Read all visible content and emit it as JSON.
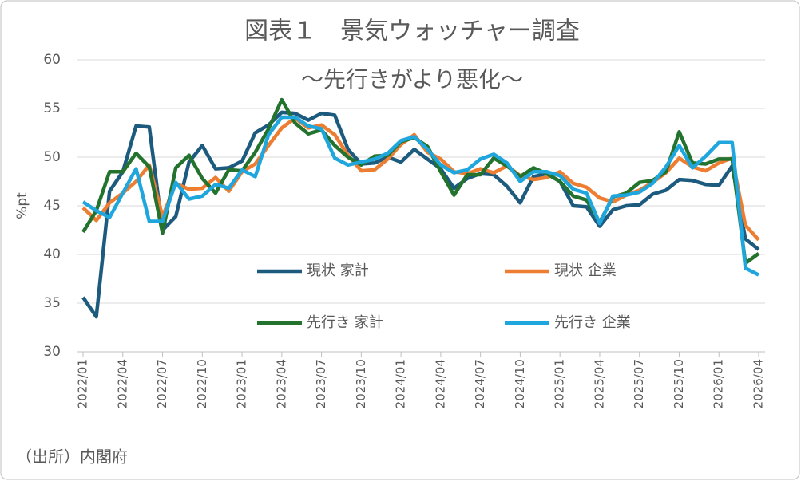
{
  "chart_data": {
    "type": "line",
    "title": "図表１　景気ウォッチャー調査",
    "subtitle": "～先行きがより悪化～",
    "y_label": "%pt",
    "source": "（出所）内閣府",
    "categories": [
      "2022/01",
      null,
      null,
      "2022/04",
      null,
      null,
      "2022/07",
      null,
      null,
      "2022/10",
      null,
      null,
      "2023/01",
      null,
      null,
      "2023/04",
      null,
      null,
      "2023/07",
      null,
      null,
      "2023/10",
      null,
      null,
      "2024/01",
      null,
      null,
      "2024/04",
      null,
      null,
      "2024/07",
      null,
      null,
      "2024/10",
      null,
      null,
      "2025/01",
      null,
      null,
      "2025/04",
      null,
      null,
      "2025/07",
      null,
      null,
      "2025/10",
      null,
      null,
      "2026/01",
      null,
      null,
      "2026/04"
    ],
    "series": [
      {
        "name": "現状 家計",
        "color": "#1d5b7e",
        "values": [
          35.6,
          33.6,
          46.5,
          48.5,
          53.2,
          53.1,
          42.5,
          43.9,
          49.5,
          51.2,
          48.8,
          48.9,
          49.6,
          52.5,
          53.3,
          54.6,
          54.5,
          53.8,
          54.5,
          54.3,
          50.8,
          49.3,
          49.4,
          50.0,
          49.5,
          50.8,
          49.8,
          48.8,
          46.8,
          47.8,
          48.3,
          48.2,
          47.0,
          45.3,
          48.0,
          48.3,
          47.5,
          45.0,
          44.9,
          42.9,
          44.6,
          45.0,
          45.1,
          46.2,
          46.6,
          47.7,
          47.6,
          47.2,
          47.1,
          49.1,
          41.6,
          40.5
        ]
      },
      {
        "name": "現状 企業",
        "color": "#ed7d31",
        "values": [
          44.8,
          43.5,
          45.3,
          46.3,
          47.5,
          49.2,
          43.9,
          47.3,
          46.7,
          46.8,
          47.9,
          46.5,
          48.5,
          49.3,
          51.2,
          53.0,
          54.0,
          53.0,
          53.3,
          52.3,
          50.2,
          48.6,
          48.7,
          49.8,
          51.3,
          52.3,
          50.5,
          49.8,
          48.5,
          48.3,
          48.8,
          48.4,
          49.1,
          48.1,
          47.7,
          47.9,
          48.5,
          47.3,
          46.9,
          45.8,
          45.4,
          46.1,
          46.6,
          47.4,
          48.4,
          49.9,
          49.0,
          48.6,
          49.4,
          49.9,
          43.0,
          41.5
        ]
      },
      {
        "name": "先行き 家計",
        "color": "#23732e",
        "values": [
          42.3,
          44.5,
          48.5,
          48.5,
          50.4,
          49.0,
          42.2,
          48.9,
          50.2,
          47.8,
          46.3,
          48.7,
          48.6,
          50.5,
          52.9,
          55.9,
          53.5,
          52.4,
          52.8,
          51.2,
          50.0,
          49.2,
          50.1,
          50.2,
          51.6,
          52.0,
          51.1,
          48.5,
          46.1,
          48.2,
          48.2,
          49.9,
          49.1,
          48.0,
          48.9,
          48.3,
          47.5,
          46.0,
          45.6,
          43.3,
          45.9,
          46.3,
          47.4,
          47.6,
          48.5,
          52.6,
          49.4,
          49.3,
          49.8,
          49.8,
          39.1,
          40.1
        ]
      },
      {
        "name": "先行き 企業",
        "color": "#1fa6dc",
        "values": [
          45.4,
          44.5,
          43.8,
          46.3,
          48.8,
          43.4,
          43.4,
          47.4,
          45.7,
          46.0,
          47.2,
          46.8,
          48.7,
          48.0,
          52.3,
          54.1,
          54.1,
          53.2,
          52.9,
          49.9,
          49.2,
          49.5,
          49.8,
          50.4,
          51.7,
          52.1,
          50.8,
          49.2,
          48.4,
          48.7,
          49.8,
          50.3,
          49.4,
          47.5,
          48.5,
          48.5,
          48.1,
          46.7,
          46.3,
          43.2,
          46.0,
          46.1,
          46.4,
          47.3,
          49.0,
          51.2,
          48.9,
          50.1,
          51.5,
          51.5,
          38.6,
          37.9
        ]
      }
    ],
    "ylim": [
      30,
      60
    ],
    "yticks": [
      30,
      35,
      40,
      45,
      50,
      55,
      60
    ],
    "grid": true
  }
}
